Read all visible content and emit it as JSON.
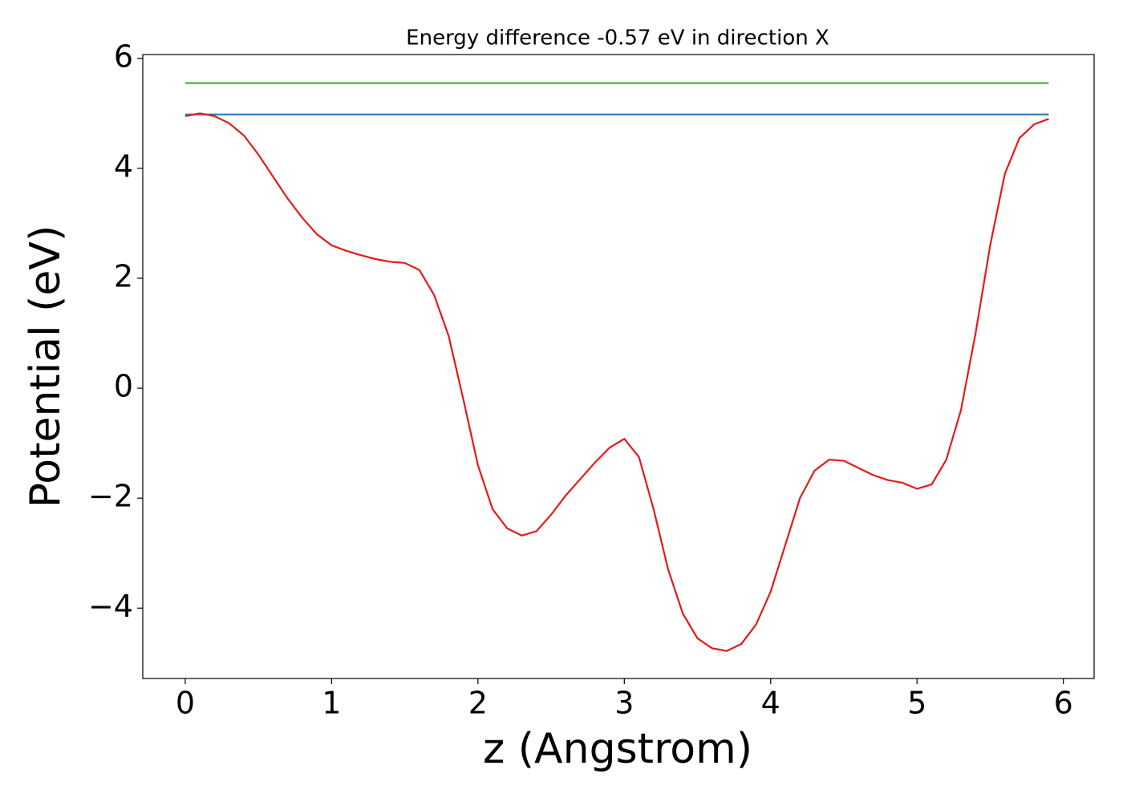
{
  "chart_data": {
    "type": "line",
    "title": "Energy difference -0.57 eV in direction X",
    "x_label": "z (Angstrom)",
    "y_label": "Potential (eV)",
    "xlim": [
      -0.29,
      6.21
    ],
    "ylim": [
      -5.28,
      6.07
    ],
    "xticks": [
      0,
      1,
      2,
      3,
      4,
      5,
      6
    ],
    "yticks": [
      {
        "value": -4,
        "label": "−4"
      },
      {
        "value": -2,
        "label": "−2"
      },
      0,
      2,
      4,
      6
    ],
    "series": [
      {
        "color": "#4daf4a",
        "x": [
          0,
          5.9
        ],
        "values": [
          5.55,
          5.55
        ]
      },
      {
        "color": "#377eb8",
        "x": [
          0,
          5.9
        ],
        "values": [
          4.98,
          4.98
        ]
      },
      {
        "color": "#e41a1c",
        "x": [
          0,
          0.1,
          0.2,
          0.3,
          0.4,
          0.5,
          0.6,
          0.7,
          0.8,
          0.9,
          1.0,
          1.1,
          1.2,
          1.3,
          1.4,
          1.5,
          1.6,
          1.7,
          1.8,
          1.9,
          2.0,
          2.1,
          2.2,
          2.3,
          2.4,
          2.5,
          2.6,
          2.7,
          2.8,
          2.9,
          3.0,
          3.1,
          3.2,
          3.3,
          3.4,
          3.5,
          3.6,
          3.7,
          3.8,
          3.9,
          4.0,
          4.1,
          4.2,
          4.3,
          4.4,
          4.5,
          4.6,
          4.7,
          4.8,
          4.9,
          5.0,
          5.1,
          5.2,
          5.3,
          5.4,
          5.5,
          5.6,
          5.7,
          5.8,
          5.9
        ],
        "values": [
          4.95,
          5.0,
          4.95,
          4.82,
          4.6,
          4.25,
          3.85,
          3.45,
          3.1,
          2.8,
          2.6,
          2.5,
          2.42,
          2.35,
          2.3,
          2.28,
          2.15,
          1.7,
          0.95,
          -0.2,
          -1.4,
          -2.2,
          -2.55,
          -2.68,
          -2.6,
          -2.3,
          -1.95,
          -1.65,
          -1.35,
          -1.08,
          -0.92,
          -1.25,
          -2.2,
          -3.3,
          -4.1,
          -4.55,
          -4.73,
          -4.78,
          -4.65,
          -4.3,
          -3.7,
          -2.85,
          -2.0,
          -1.5,
          -1.3,
          -1.32,
          -1.45,
          -1.58,
          -1.67,
          -1.72,
          -1.83,
          -1.75,
          -1.3,
          -0.4,
          1.0,
          2.6,
          3.9,
          4.55,
          4.8,
          4.9
        ]
      }
    ]
  }
}
